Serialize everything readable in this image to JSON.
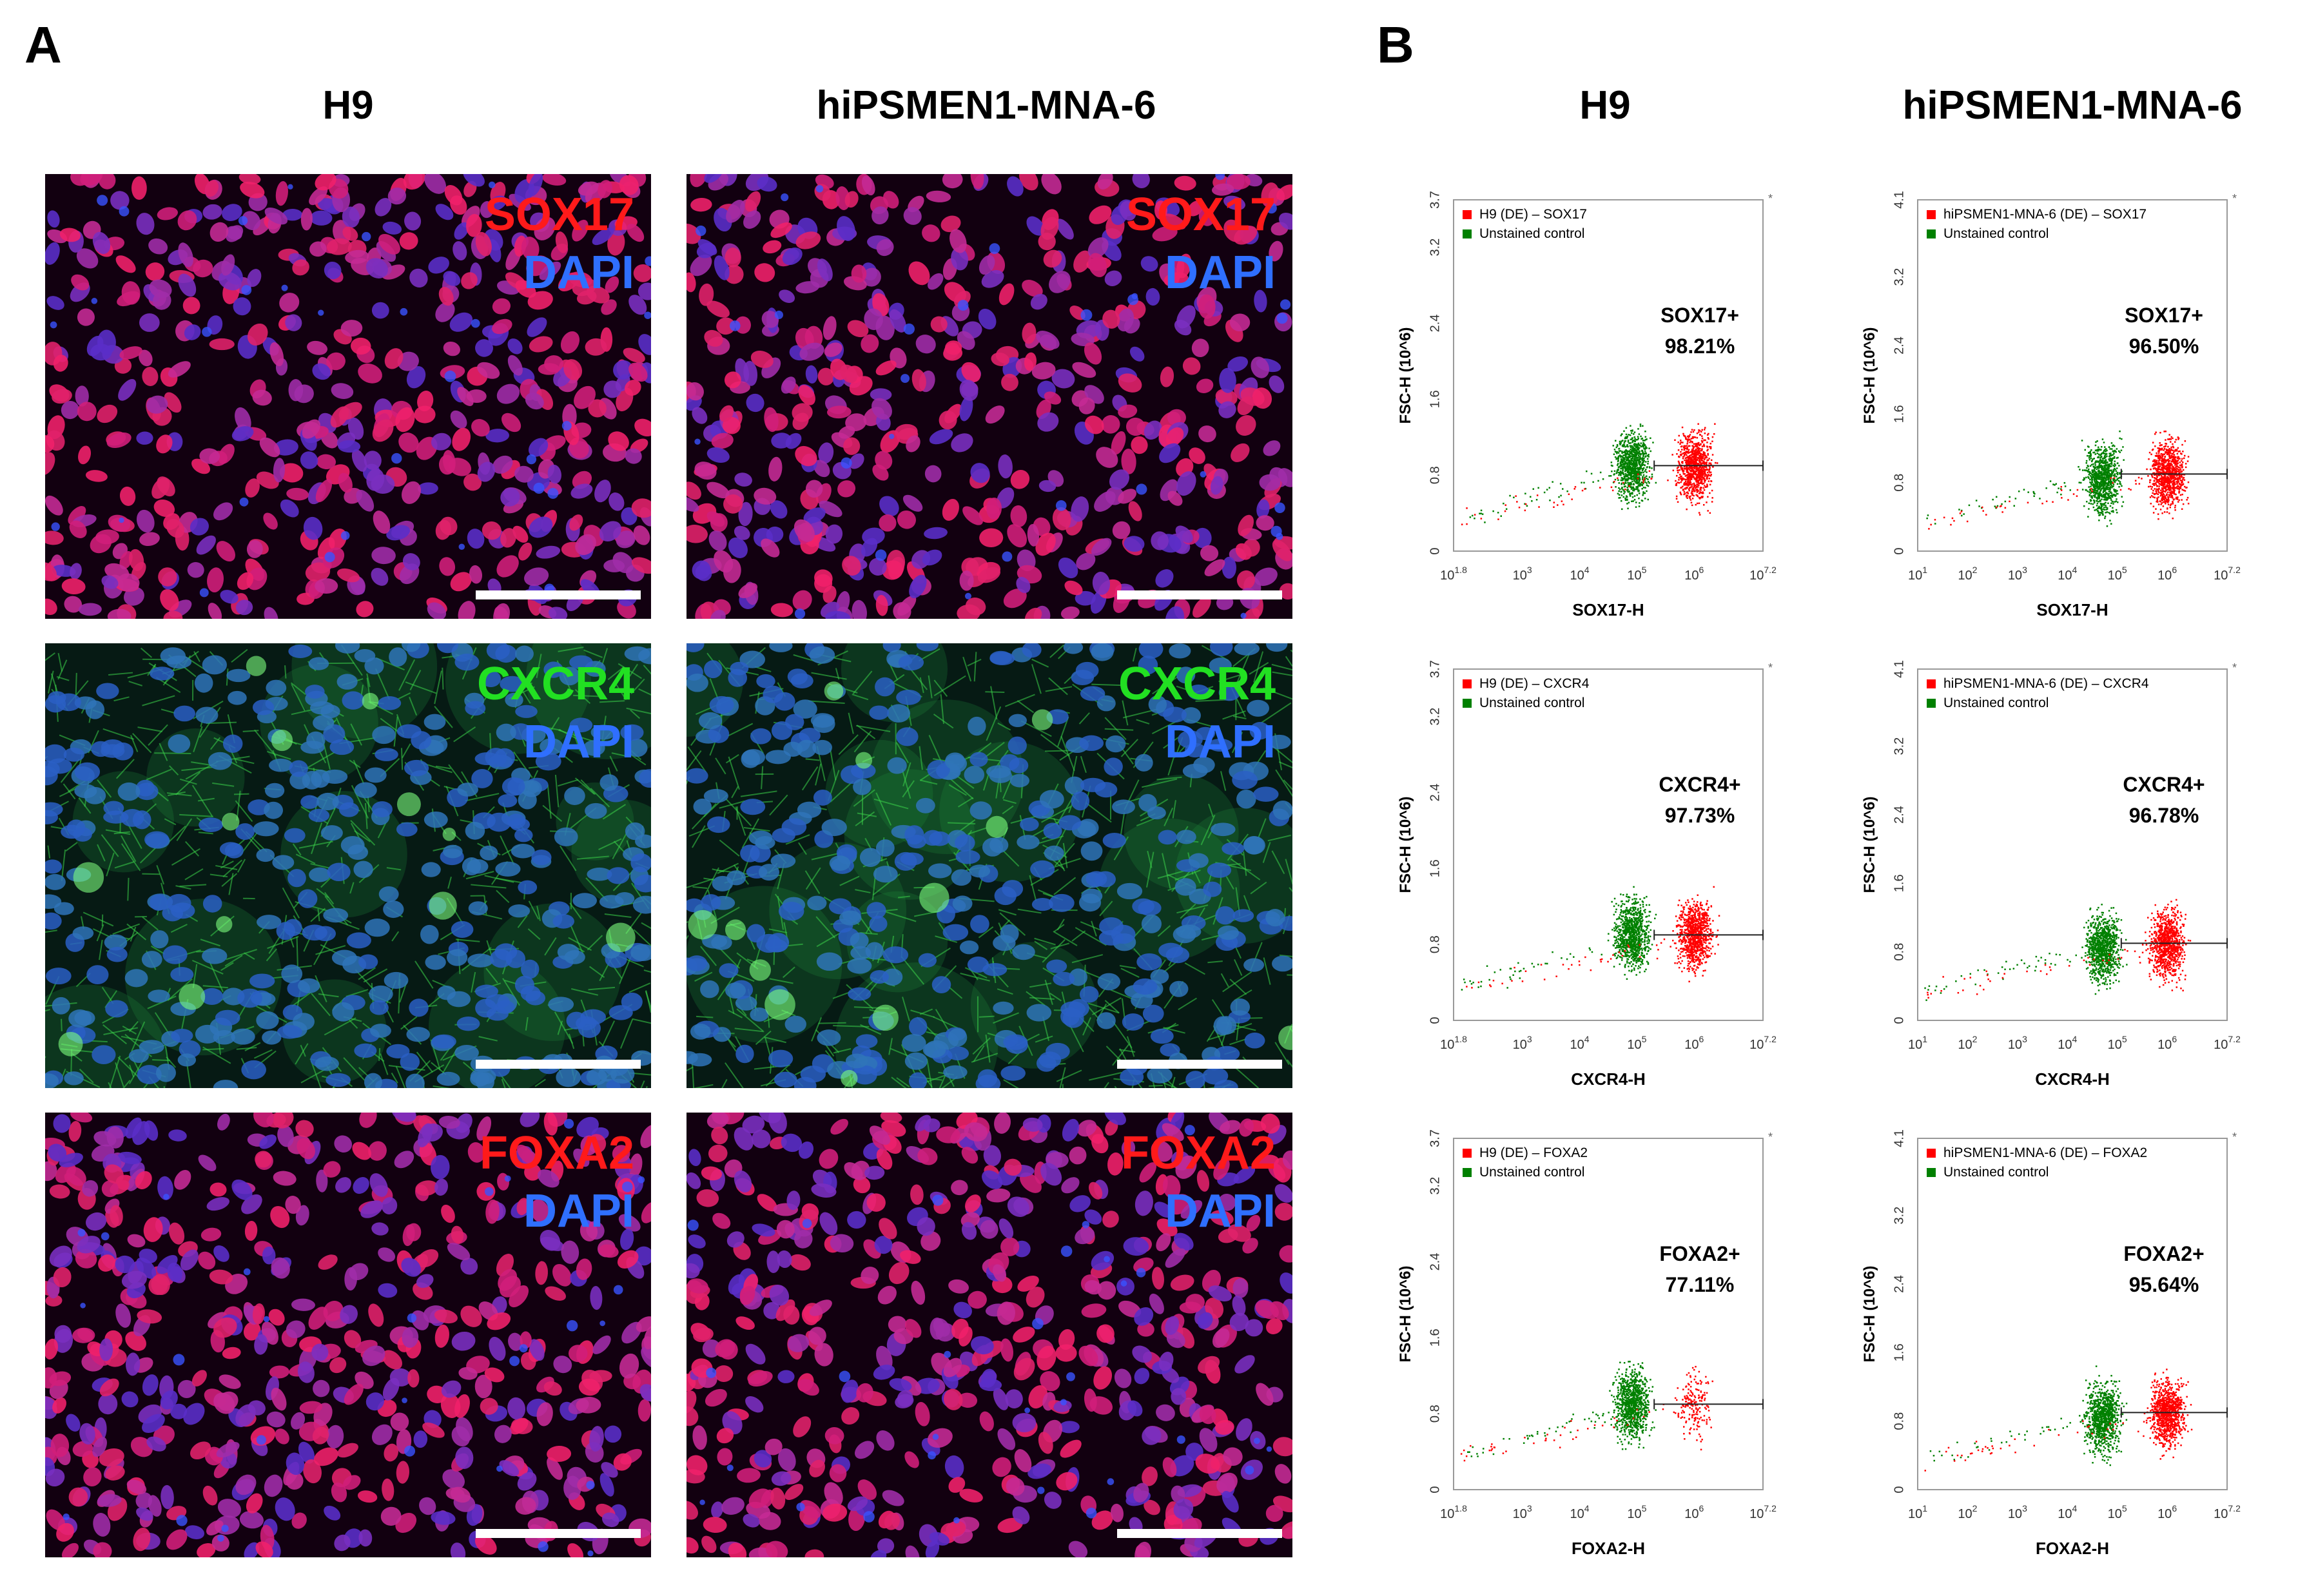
{
  "figure": {
    "panel_a_label": "A",
    "panel_b_label": "B",
    "columns": [
      "H9",
      "hiPSMEN1-MNA-6"
    ]
  },
  "micrographs": [
    {
      "marker": "SOX17",
      "counterstain": "DAPI",
      "marker_color": "#ff1a1a",
      "counterstain_color": "#2f6fff",
      "theme": "nuclear"
    },
    {
      "marker": "CXCR4",
      "counterstain": "DAPI",
      "marker_color": "#22e022",
      "counterstain_color": "#2f6fff",
      "theme": "membrane"
    },
    {
      "marker": "FOXA2",
      "counterstain": "DAPI",
      "marker_color": "#ff1a1a",
      "counterstain_color": "#2f6fff",
      "theme": "nuclear"
    }
  ],
  "colors": {
    "positive_population": "#ff0000",
    "unstained_population": "#008000"
  },
  "chart_data": [
    {
      "type": "scatter",
      "title": "",
      "xlabel": "SOX17-H",
      "ylabel": "FSC-H (10^6)",
      "x_scale": "log",
      "xtick_labels": [
        "10^1.8",
        "10^3",
        "10^4",
        "10^5",
        "10^6",
        "10^7.2"
      ],
      "ylim": [
        0,
        3.7
      ],
      "yticks": [
        "0",
        "0.8",
        "1.6",
        "2.4",
        "3.2",
        "3.7"
      ],
      "series": [
        {
          "name": "H9 (DE) – SOX17",
          "x_center": 1000000.0,
          "y_center": 0.9
        },
        {
          "name": "Unstained control",
          "x_center": 80000.0,
          "y_center": 0.9
        }
      ],
      "gate_start_x": 200000.0,
      "gate_y": 0.9,
      "annotation_label": "SOX17+",
      "annotation_value": "98.21%"
    },
    {
      "type": "scatter",
      "title": "",
      "xlabel": "SOX17-H",
      "ylabel": "FSC-H (10^6)",
      "x_scale": "log",
      "xtick_labels": [
        "10^1",
        "10^2",
        "10^3",
        "10^4",
        "10^5",
        "10^6",
        "10^7.2"
      ],
      "ylim": [
        0,
        4.1
      ],
      "yticks": [
        "0",
        "0.8",
        "1.6",
        "2.4",
        "3.2",
        "4.1"
      ],
      "series": [
        {
          "name": "hiPSMEN1-MNA-6 (DE) – SOX17",
          "x_center": 1000000.0,
          "y_center": 0.9
        },
        {
          "name": "Unstained control",
          "x_center": 50000.0,
          "y_center": 0.85
        }
      ],
      "gate_start_x": 120000.0,
      "gate_y": 0.9,
      "annotation_label": "SOX17+",
      "annotation_value": "96.50%"
    },
    {
      "type": "scatter",
      "title": "",
      "xlabel": "CXCR4-H",
      "ylabel": "FSC-H (10^6)",
      "x_scale": "log",
      "xtick_labels": [
        "10^1.8",
        "10^3",
        "10^4",
        "10^5",
        "10^6",
        "10^7.2"
      ],
      "ylim": [
        0,
        3.7
      ],
      "yticks": [
        "0",
        "0.8",
        "1.6",
        "2.4",
        "3.2",
        "3.7"
      ],
      "series": [
        {
          "name": "H9 (DE) – CXCR4",
          "x_center": 1000000.0,
          "y_center": 0.9
        },
        {
          "name": "Unstained control",
          "x_center": 80000.0,
          "y_center": 0.9
        }
      ],
      "gate_start_x": 200000.0,
      "gate_y": 0.9,
      "annotation_label": "CXCR4+",
      "annotation_value": "97.73%"
    },
    {
      "type": "scatter",
      "title": "",
      "xlabel": "CXCR4-H",
      "ylabel": "FSC-H (10^6)",
      "x_scale": "log",
      "xtick_labels": [
        "10^1",
        "10^2",
        "10^3",
        "10^4",
        "10^5",
        "10^6",
        "10^7.2"
      ],
      "ylim": [
        0,
        4.1
      ],
      "yticks": [
        "0",
        "0.8",
        "1.6",
        "2.4",
        "3.2",
        "4.1"
      ],
      "series": [
        {
          "name": "hiPSMEN1-MNA-6 (DE) – CXCR4",
          "x_center": 1000000.0,
          "y_center": 0.9
        },
        {
          "name": "Unstained control",
          "x_center": 50000.0,
          "y_center": 0.85
        }
      ],
      "gate_start_x": 120000.0,
      "gate_y": 0.9,
      "annotation_label": "CXCR4+",
      "annotation_value": "96.78%"
    },
    {
      "type": "scatter",
      "title": "",
      "xlabel": "FOXA2-H",
      "ylabel": "FSC-H (10^6)",
      "x_scale": "log",
      "xtick_labels": [
        "10^1.8",
        "10^3",
        "10^4",
        "10^5",
        "10^6",
        "10^7.2"
      ],
      "ylim": [
        0,
        3.7
      ],
      "yticks": [
        "0",
        "0.8",
        "1.6",
        "2.4",
        "3.2",
        "3.7"
      ],
      "series": [
        {
          "name": "H9 (DE) – FOXA2",
          "x_center": 1000000.0,
          "y_center": 0.9
        },
        {
          "name": "Unstained control",
          "x_center": 80000.0,
          "y_center": 0.9
        }
      ],
      "gate_start_x": 200000.0,
      "gate_y": 0.9,
      "annotation_label": "FOXA2+",
      "annotation_value": "77.11%"
    },
    {
      "type": "scatter",
      "title": "",
      "xlabel": "FOXA2-H",
      "ylabel": "FSC-H (10^6)",
      "x_scale": "log",
      "xtick_labels": [
        "10^1",
        "10^2",
        "10^3",
        "10^4",
        "10^5",
        "10^6",
        "10^7.2"
      ],
      "ylim": [
        0,
        4.1
      ],
      "yticks": [
        "0",
        "0.8",
        "1.6",
        "2.4",
        "3.2",
        "4.1"
      ],
      "series": [
        {
          "name": "hiPSMEN1-MNA-6 (DE) – FOXA2",
          "x_center": 1000000.0,
          "y_center": 0.9
        },
        {
          "name": "Unstained control",
          "x_center": 50000.0,
          "y_center": 0.85
        }
      ],
      "gate_start_x": 120000.0,
      "gate_y": 0.9,
      "annotation_label": "FOXA2+",
      "annotation_value": "95.64%"
    }
  ]
}
